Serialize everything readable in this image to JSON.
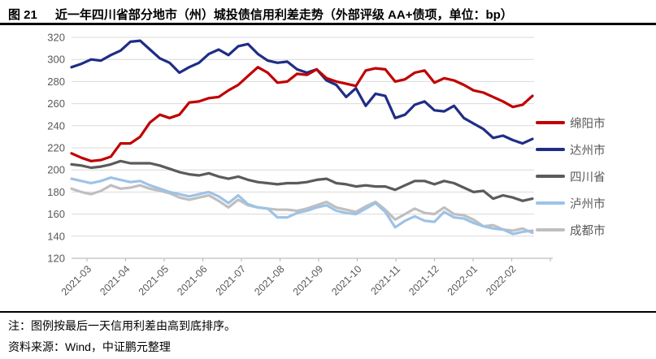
{
  "page": {
    "title_prefix": "图 21",
    "title_text": "近一年四川省部分地市（州）城投债信用利差走势（外部评级 AA+债项，单位：bp）",
    "note": "注：图例按最后一天信用利差由高到底排序。",
    "source": "资料来源：Wind，中证鹏元整理"
  },
  "colors": {
    "rule": "#000000",
    "gridline": "#D9D9D9",
    "axis_line": "#BFBFBF",
    "axis_text": "#595959",
    "legend_text": "#595959"
  },
  "chart_data": {
    "type": "line",
    "title": "近一年四川省部分地市（州）城投债信用利差走势（外部评级 AA+债项，单位：bp）",
    "unit": "bp",
    "x_tick_labels": [
      "2021-03",
      "2021-04",
      "2021-05",
      "2021-06",
      "2021-07",
      "2021-08",
      "2021-09",
      "2021-10",
      "2021-11",
      "2021-12",
      "2022-01",
      "2022-02"
    ],
    "y_ticks": [
      120,
      140,
      160,
      180,
      200,
      220,
      240,
      260,
      280,
      300,
      320
    ],
    "ylim": [
      120,
      320
    ],
    "grid": "horizontal",
    "legend_position": "right",
    "samples_per_month": 4,
    "series": [
      {
        "name": "绵阳市",
        "color": "#C00000",
        "values": [
          215,
          211,
          208,
          209,
          212,
          224,
          224,
          230,
          243,
          250,
          247,
          250,
          261,
          262,
          265,
          266,
          272,
          277,
          285,
          293,
          288,
          279,
          280,
          287,
          286,
          291,
          283,
          280,
          278,
          276,
          290,
          292,
          291,
          280,
          282,
          288,
          290,
          279,
          283,
          281,
          277,
          272,
          270,
          266,
          262,
          257,
          259,
          267
        ]
      },
      {
        "name": "达州市",
        "color": "#1F2D86",
        "values": [
          293,
          296,
          300,
          299,
          304,
          308,
          316,
          317,
          309,
          301,
          297,
          288,
          293,
          297,
          305,
          309,
          304,
          312,
          314,
          305,
          299,
          297,
          298,
          291,
          288,
          291,
          281,
          277,
          266,
          274,
          258,
          269,
          267,
          247,
          250,
          259,
          262,
          254,
          253,
          258,
          247,
          242,
          237,
          229,
          231,
          227,
          224,
          228
        ]
      },
      {
        "name": "四川省",
        "color": "#5B5B5B",
        "values": [
          205,
          204,
          202,
          203,
          205,
          208,
          206,
          206,
          206,
          204,
          201,
          198,
          196,
          195,
          197,
          194,
          192,
          194,
          191,
          189,
          188,
          187,
          188,
          188,
          189,
          191,
          192,
          188,
          187,
          185,
          186,
          185,
          185,
          182,
          186,
          190,
          190,
          187,
          190,
          188,
          184,
          180,
          181,
          174,
          177,
          175,
          172,
          174
        ]
      },
      {
        "name": "泸州市",
        "color": "#9DC3E6",
        "values": [
          192,
          190,
          188,
          190,
          193,
          191,
          189,
          190,
          186,
          183,
          180,
          178,
          176,
          178,
          180,
          176,
          170,
          177,
          169,
          166,
          165,
          157,
          157,
          161,
          163,
          166,
          168,
          163,
          161,
          160,
          165,
          170,
          162,
          148,
          154,
          158,
          154,
          153,
          162,
          157,
          156,
          152,
          149,
          147,
          146,
          142,
          144,
          145
        ]
      },
      {
        "name": "成都市",
        "color": "#BFBFBF",
        "values": [
          183,
          180,
          178,
          181,
          186,
          183,
          184,
          186,
          183,
          181,
          179,
          175,
          173,
          175,
          177,
          172,
          166,
          173,
          168,
          166,
          165,
          164,
          164,
          163,
          165,
          168,
          171,
          166,
          164,
          162,
          167,
          171,
          164,
          155,
          160,
          165,
          161,
          160,
          166,
          160,
          159,
          155,
          149,
          150,
          146,
          145,
          147,
          143
        ]
      }
    ]
  }
}
